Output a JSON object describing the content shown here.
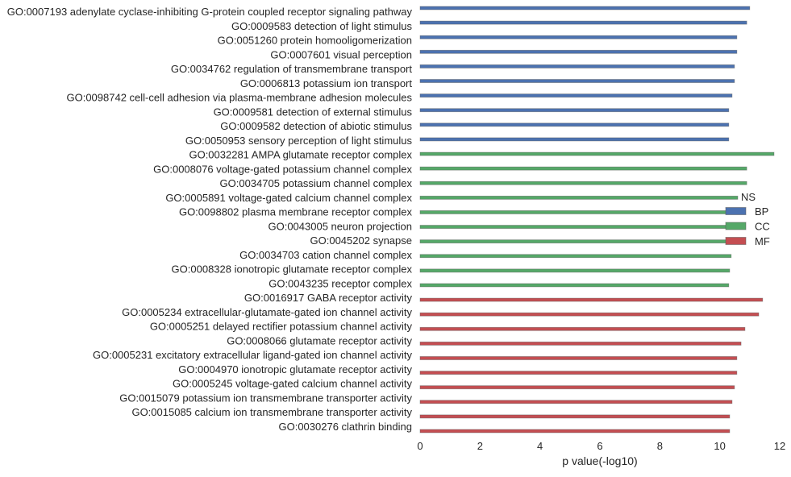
{
  "chart_data": {
    "type": "bar",
    "orientation": "horizontal",
    "title": "",
    "xlabel": "p value(-log10)",
    "ylabel": "",
    "xlim": [
      0,
      12
    ],
    "xticks": [
      "0",
      "2",
      "4",
      "6",
      "8",
      "10",
      "12"
    ],
    "grid": false,
    "legend": {
      "title": "NS",
      "placement": "right",
      "entries": [
        "BP",
        "CC",
        "MF"
      ]
    },
    "colors": {
      "BP": "#4c72b0",
      "CC": "#55a868",
      "MF": "#c44e52"
    },
    "categories": [
      "GO:0007193 adenylate cyclase-inhibiting G-protein coupled receptor signaling pathway",
      "GO:0009583 detection of light stimulus",
      "GO:0051260 protein homooligomerization",
      "GO:0007601 visual perception",
      "GO:0034762 regulation of transmembrane transport",
      "GO:0006813 potassium ion transport",
      "GO:0098742 cell-cell adhesion via plasma-membrane adhesion molecules",
      "GO:0009581 detection of external stimulus",
      "GO:0009582 detection of abiotic stimulus",
      "GO:0050953 sensory perception of light stimulus",
      "GO:0032281 AMPA glutamate receptor complex",
      "GO:0008076 voltage-gated potassium channel complex",
      "GO:0034705 potassium channel complex",
      "GO:0005891 voltage-gated calcium channel complex",
      "GO:0098802 plasma membrane receptor complex",
      "GO:0043005 neuron projection",
      "GO:0045202 synapse",
      "GO:0034703 cation channel complex",
      "GO:0008328 ionotropic glutamate receptor complex",
      "GO:0043235 receptor complex",
      "GO:0016917 GABA receptor activity",
      "GO:0005234 extracellular-glutamate-gated ion channel activity",
      "GO:0005251 delayed rectifier potassium channel activity",
      "GO:0008066 glutamate receptor activity",
      "GO:0005231 excitatory extracellular ligand-gated ion channel activity",
      "GO:0004970 ionotropic glutamate receptor activity",
      "GO:0005245 voltage-gated calcium channel activity",
      "GO:0015079 potassium ion transmembrane transporter activity",
      "GO:0015085 calcium ion transmembrane transporter activity",
      "GO:0030276 clathrin binding"
    ],
    "groups": [
      "BP",
      "BP",
      "BP",
      "BP",
      "BP",
      "BP",
      "BP",
      "BP",
      "BP",
      "BP",
      "CC",
      "CC",
      "CC",
      "CC",
      "CC",
      "CC",
      "CC",
      "CC",
      "CC",
      "CC",
      "MF",
      "MF",
      "MF",
      "MF",
      "MF",
      "MF",
      "MF",
      "MF",
      "MF",
      "MF"
    ],
    "values": [
      11.0,
      10.9,
      10.57,
      10.57,
      10.49,
      10.49,
      10.41,
      10.3,
      10.3,
      10.3,
      11.81,
      10.9,
      10.9,
      10.6,
      10.5,
      10.45,
      10.45,
      10.38,
      10.33,
      10.3,
      11.43,
      11.3,
      10.84,
      10.71,
      10.57,
      10.57,
      10.49,
      10.41,
      10.33,
      10.33
    ]
  }
}
